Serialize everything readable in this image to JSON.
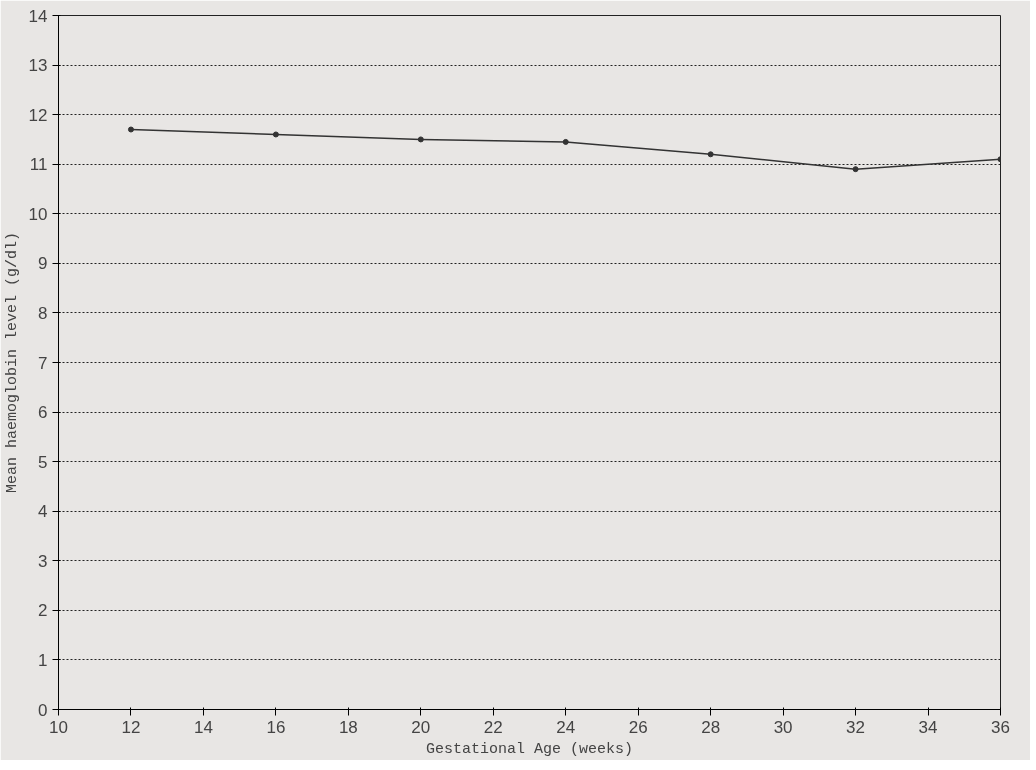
{
  "chart_data": {
    "type": "line",
    "xlabel": "Gestational Age (weeks)",
    "ylabel": "Mean haemoglobin level (g/dl)",
    "x": [
      12,
      16,
      20,
      24,
      28,
      32,
      36
    ],
    "series": [
      {
        "color": "#333333",
        "values": [
          11.7,
          11.6,
          11.5,
          11.45,
          11.2,
          10.9,
          11.1
        ]
      }
    ],
    "xlim": [
      10,
      36
    ],
    "xticks": [
      10,
      12,
      14,
      16,
      18,
      20,
      22,
      24,
      26,
      28,
      30,
      32,
      34,
      36
    ],
    "ylim": [
      0,
      14
    ],
    "yticks": [
      0,
      1,
      2,
      3,
      4,
      5,
      6,
      7,
      8,
      9,
      10,
      11,
      12,
      13,
      14
    ],
    "grid": "y",
    "marker": "circle",
    "line_style": "solid"
  }
}
